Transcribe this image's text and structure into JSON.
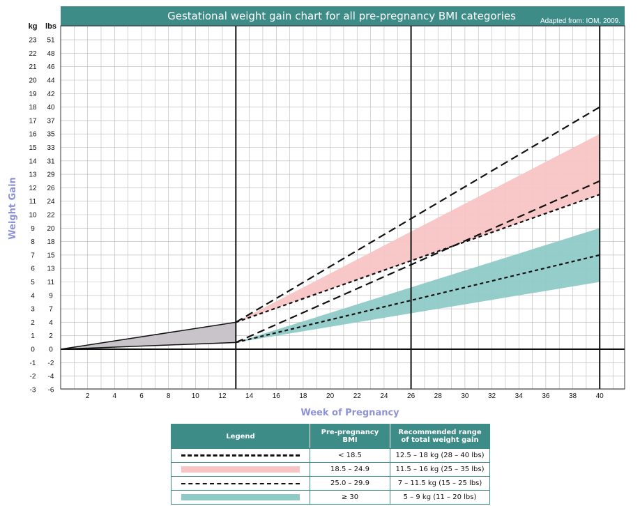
{
  "chart_data": {
    "type": "line",
    "title": "Gestational weight gain chart for all pre-pregnancy BMI categories",
    "source": "Adapted from: IOM, 2009.",
    "xlabel": "Week of Pregnancy",
    "ylabel": "Weight Gain",
    "xlim": [
      0,
      42
    ],
    "ylim": [
      -3,
      24
    ],
    "x_ticks": [
      2,
      4,
      6,
      8,
      10,
      12,
      14,
      16,
      18,
      20,
      22,
      24,
      26,
      28,
      30,
      32,
      34,
      36,
      38,
      40
    ],
    "y_unit_kg": "kg",
    "y_unit_lbs": "lbs",
    "y_ticks_kg": [
      23,
      22,
      21,
      20,
      19,
      18,
      17,
      16,
      15,
      14,
      13,
      12,
      11,
      10,
      9,
      8,
      7,
      6,
      5,
      4,
      3,
      2,
      1,
      0,
      -1,
      -2,
      -3
    ],
    "y_ticks_lbs": [
      "51",
      "48",
      "46",
      "44",
      "42",
      "40",
      "37",
      "35",
      "33",
      "31",
      "29",
      "26",
      "24",
      "22",
      "20",
      "18",
      "15",
      "13",
      "11",
      "9",
      "7",
      "4",
      "2",
      "0",
      "-2",
      "-4",
      "-6"
    ],
    "grid": true,
    "reference_weeks": [
      13,
      26,
      40
    ],
    "first_trimester_region": {
      "weeks": [
        0,
        13
      ],
      "upper_kg": [
        0,
        2
      ],
      "lower_kg": [
        0,
        0.5
      ],
      "color": "#c8c4ca"
    },
    "bands": [
      {
        "name": "18.5 – 24.9",
        "color": "#f8c4c4",
        "x": [
          13,
          40
        ],
        "low_kg": [
          2,
          11.5
        ],
        "high_kg": [
          2,
          16
        ]
      },
      {
        "name": "≥ 30",
        "color": "#8ecac6",
        "x": [
          13,
          40
        ],
        "low_kg": [
          0.5,
          5
        ],
        "high_kg": [
          0.5,
          9
        ]
      }
    ],
    "lines": [
      {
        "name": "< 18.5",
        "style": "long-dash",
        "x": [
          13,
          40
        ],
        "y_kg": [
          2,
          18
        ]
      },
      {
        "name": "< 18.5",
        "style": "long-dash",
        "x": [
          13,
          40
        ],
        "y_kg": [
          0.5,
          12.5
        ]
      },
      {
        "name": "25.0 – 29.9",
        "style": "short-dash",
        "x": [
          13,
          40
        ],
        "y_kg": [
          2,
          11.5
        ]
      },
      {
        "name": "25.0 – 29.9",
        "style": "short-dash",
        "x": [
          13,
          40
        ],
        "y_kg": [
          0.5,
          7
        ]
      }
    ]
  },
  "legend": {
    "headers": {
      "legend": "Legend",
      "bmi": "Pre-pregnancy BMI",
      "range_line1": "Recommended range",
      "range_line2": "of total weight gain"
    },
    "rows": [
      {
        "bmi": "< 18.5",
        "range": "12.5 – 18 kg (28 – 40 lbs)",
        "swatch": "long-dash"
      },
      {
        "bmi": "18.5 – 24.9",
        "range": "11.5 – 16 kg (25 – 35 lbs)",
        "swatch": "band",
        "color": "#f8c4c4"
      },
      {
        "bmi": "25.0 – 29.9",
        "range": "7 – 11.5 kg (15 – 25 lbs)",
        "swatch": "short-dash"
      },
      {
        "bmi": "≥ 30",
        "range": "5 – 9 kg (11 – 20 lbs)",
        "swatch": "band",
        "color": "#8ecac6"
      }
    ]
  },
  "colors": {
    "header": "#3e8c88",
    "grid": "#b8b8b8",
    "axis_title": "#8f93d4"
  }
}
